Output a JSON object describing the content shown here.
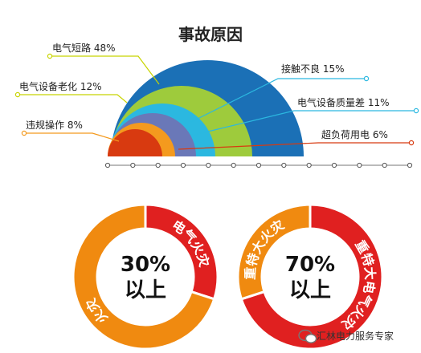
{
  "chart_data": [
    {
      "type": "semicircle-concentric",
      "title": "事故原因",
      "series": [
        {
          "name": "电气短路",
          "value": 48,
          "label": "电气短路 48%",
          "color": "#1b70b6",
          "leader": "#c8d400"
        },
        {
          "name": "接触不良",
          "value": 15,
          "label": "接触不良 15%",
          "color": "#2bb8e0",
          "leader": "#2bb8e0"
        },
        {
          "name": "电气设备老化",
          "value": 12,
          "label": "电气设备老化 12%",
          "color": "#9ecb3c",
          "leader": "#c8d400"
        },
        {
          "name": "电气设备质量差",
          "value": 11,
          "label": "电气设备质量差 11%",
          "color": "#6a78b8",
          "leader": "#2bb8e0"
        },
        {
          "name": "违规操作",
          "value": 8,
          "label": "违规操作 8%",
          "color": "#f49a1e",
          "leader": "#f49a1e"
        },
        {
          "name": "超负荷用电",
          "value": 6,
          "label": "超负荷用电 6%",
          "color": "#d83a10",
          "leader": "#d83a10"
        }
      ],
      "axis_ticks": 13
    },
    {
      "type": "pie",
      "slices": [
        {
          "name": "电气火灾",
          "value": 30,
          "color": "#e02020"
        },
        {
          "name": "火灾",
          "value": 70,
          "color": "#f08a10"
        }
      ],
      "center_text": [
        "30%",
        "以上"
      ]
    },
    {
      "type": "pie",
      "slices": [
        {
          "name": "重特大电气火灾",
          "value": 70,
          "color": "#e02020"
        },
        {
          "name": "重特大火灾",
          "value": 30,
          "color": "#f08a10"
        }
      ],
      "center_text": [
        "70%",
        "以上"
      ]
    }
  ],
  "watermark": "汇林电力服务专家"
}
